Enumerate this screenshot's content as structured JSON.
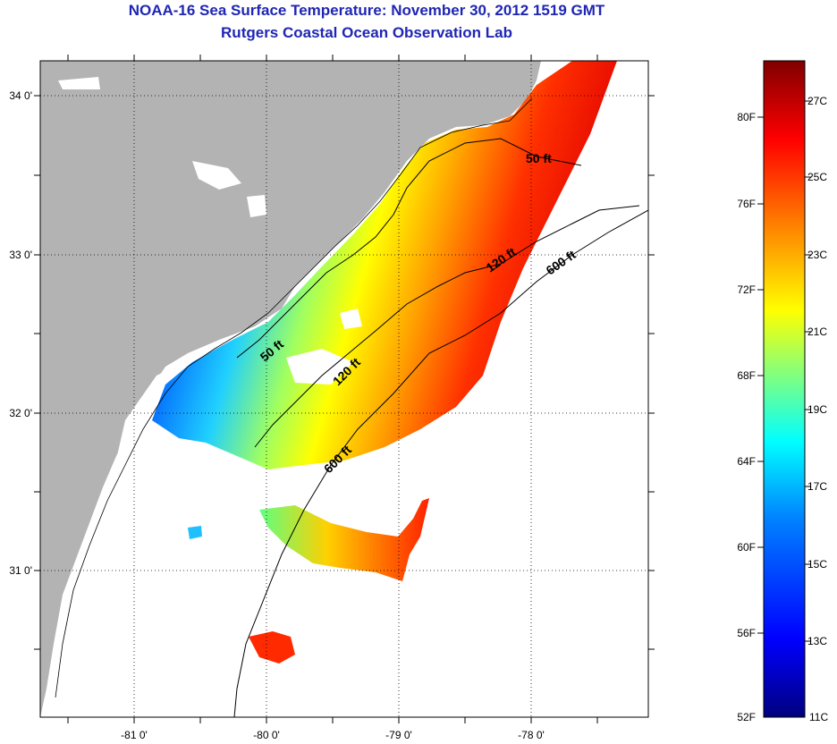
{
  "title": {
    "line1": "NOAA-16 Sea Surface Temperature:  November 30, 2012 1519 GMT",
    "line2": "Rutgers Coastal Ocean Observation Lab"
  },
  "map": {
    "lat_labels": [
      "34 0'",
      "33 0'",
      "32 0'",
      "31 0'"
    ],
    "lon_labels": [
      "-81 0'",
      "-80 0'",
      "-79 0'",
      "-78 0'"
    ],
    "contour_labels": [
      "50 ft",
      "120 ft",
      "600 ft",
      "50 ft",
      "120 ft",
      "600 ft"
    ]
  },
  "colorbar": {
    "fahrenheit_labels": [
      "80F",
      "76F",
      "72F",
      "68F",
      "64F",
      "60F",
      "56F",
      "52F"
    ],
    "celsius_labels": [
      "27C",
      "25C",
      "23C",
      "21C",
      "19C",
      "17C",
      "15C",
      "13C",
      "11C"
    ],
    "colors": [
      "#000080",
      "#0000ff",
      "#0080ff",
      "#00ffff",
      "#80ff80",
      "#ffff00",
      "#ff8000",
      "#ff0000",
      "#800000"
    ]
  },
  "colors": {
    "land": "#b3b3b3",
    "title": "#1f26b4",
    "cloud": "#ffffff"
  }
}
